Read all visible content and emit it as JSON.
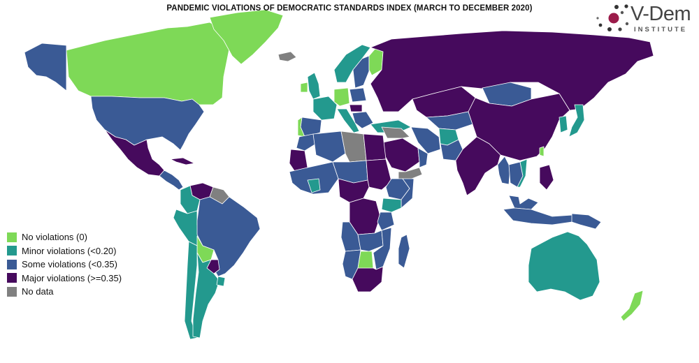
{
  "title": "PANDEMIC VIOLATIONS OF DEMOCRATIC STANDARDS INDEX (MARCH TO DECEMBER 2020)",
  "logo": {
    "wordmark": "V-Dem",
    "subtitle": "INSTITUTE",
    "icon": "v-dem-dots-logo",
    "colors": {
      "dark": "#333333",
      "accent": "#9b1b4a"
    }
  },
  "colors": {
    "no_violations": "#7ed957",
    "minor": "#23998e",
    "some": "#3a5a95",
    "major": "#460a5d",
    "no_data": "#808080",
    "ocean": "#ffffff"
  },
  "legend": [
    {
      "label": "No violations (0)",
      "category": "no_violations",
      "color": "#7ed957"
    },
    {
      "label": "Minor violations (<0.20)",
      "category": "minor",
      "color": "#23998e"
    },
    {
      "label": "Some violations (<0.35)",
      "category": "some",
      "color": "#3a5a95"
    },
    {
      "label": "Major violations (>=0.35)",
      "category": "major",
      "color": "#460a5d"
    },
    {
      "label": "No data",
      "category": "no_data",
      "color": "#808080"
    }
  ],
  "regions": [
    {
      "name": "canada",
      "category": "no_violations"
    },
    {
      "name": "greenland",
      "category": "no_violations"
    },
    {
      "name": "usa",
      "category": "some"
    },
    {
      "name": "alaska",
      "category": "some"
    },
    {
      "name": "mexico",
      "category": "major"
    },
    {
      "name": "central-america",
      "category": "some"
    },
    {
      "name": "cuba",
      "category": "major"
    },
    {
      "name": "venezuela",
      "category": "major"
    },
    {
      "name": "guianas",
      "category": "no_data"
    },
    {
      "name": "colombia",
      "category": "minor"
    },
    {
      "name": "peru",
      "category": "minor"
    },
    {
      "name": "brazil",
      "category": "some"
    },
    {
      "name": "bolivia",
      "category": "no_violations"
    },
    {
      "name": "paraguay",
      "category": "major"
    },
    {
      "name": "chile",
      "category": "minor"
    },
    {
      "name": "argentina",
      "category": "minor"
    },
    {
      "name": "uruguay",
      "category": "minor"
    },
    {
      "name": "iceland",
      "category": "no_data"
    },
    {
      "name": "uk",
      "category": "minor"
    },
    {
      "name": "ireland",
      "category": "no_violations"
    },
    {
      "name": "norway",
      "category": "minor"
    },
    {
      "name": "sweden",
      "category": "some"
    },
    {
      "name": "finland",
      "category": "no_violations"
    },
    {
      "name": "france",
      "category": "minor"
    },
    {
      "name": "spain",
      "category": "some"
    },
    {
      "name": "portugal",
      "category": "no_violations"
    },
    {
      "name": "germany",
      "category": "no_violations"
    },
    {
      "name": "italy",
      "category": "minor"
    },
    {
      "name": "poland",
      "category": "some"
    },
    {
      "name": "hungary",
      "category": "major"
    },
    {
      "name": "balkans",
      "category": "some"
    },
    {
      "name": "turkey",
      "category": "minor"
    },
    {
      "name": "russia",
      "category": "major"
    },
    {
      "name": "kazakhstan",
      "category": "major"
    },
    {
      "name": "central-asia",
      "category": "some"
    },
    {
      "name": "mongolia",
      "category": "some"
    },
    {
      "name": "china",
      "category": "major"
    },
    {
      "name": "korea",
      "category": "minor"
    },
    {
      "name": "japan",
      "category": "minor"
    },
    {
      "name": "taiwan",
      "category": "no_violations"
    },
    {
      "name": "iran",
      "category": "some"
    },
    {
      "name": "afghanistan",
      "category": "minor"
    },
    {
      "name": "pakistan",
      "category": "some"
    },
    {
      "name": "india",
      "category": "major"
    },
    {
      "name": "saudi-arabia",
      "category": "major"
    },
    {
      "name": "yemen",
      "category": "no_data"
    },
    {
      "name": "oman",
      "category": "some"
    },
    {
      "name": "syria-iraq",
      "category": "no_data"
    },
    {
      "name": "myanmar",
      "category": "some"
    },
    {
      "name": "southeast-asia",
      "category": "some"
    },
    {
      "name": "vietnam",
      "category": "minor"
    },
    {
      "name": "philippines",
      "category": "major"
    },
    {
      "name": "malaysia",
      "category": "some"
    },
    {
      "name": "indonesia",
      "category": "some"
    },
    {
      "name": "papua",
      "category": "some"
    },
    {
      "name": "australia",
      "category": "minor"
    },
    {
      "name": "new-zealand",
      "category": "no_violations"
    },
    {
      "name": "morocco",
      "category": "some"
    },
    {
      "name": "algeria",
      "category": "some"
    },
    {
      "name": "libya",
      "category": "no_data"
    },
    {
      "name": "egypt",
      "category": "major"
    },
    {
      "name": "mauritania",
      "category": "major"
    },
    {
      "name": "west-africa",
      "category": "some"
    },
    {
      "name": "ghana",
      "category": "minor"
    },
    {
      "name": "niger-chad",
      "category": "some"
    },
    {
      "name": "sudan",
      "category": "major"
    },
    {
      "name": "ethiopia",
      "category": "some"
    },
    {
      "name": "somalia",
      "category": "some"
    },
    {
      "name": "kenya",
      "category": "minor"
    },
    {
      "name": "cameroon-car",
      "category": "major"
    },
    {
      "name": "drc",
      "category": "major"
    },
    {
      "name": "tanzania",
      "category": "some"
    },
    {
      "name": "angola",
      "category": "some"
    },
    {
      "name": "zambia",
      "category": "some"
    },
    {
      "name": "namibia",
      "category": "some"
    },
    {
      "name": "botswana",
      "category": "no_violations"
    },
    {
      "name": "mozambique",
      "category": "some"
    },
    {
      "name": "south-africa",
      "category": "major"
    },
    {
      "name": "madagascar",
      "category": "some"
    }
  ]
}
